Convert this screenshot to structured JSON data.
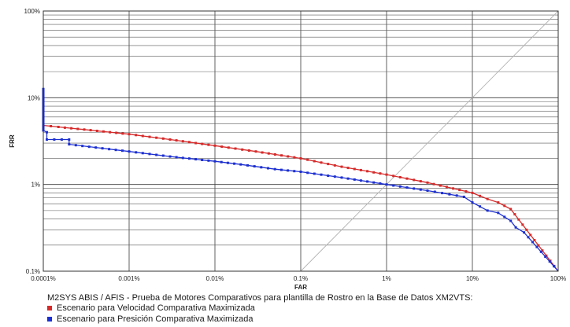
{
  "chart_data": {
    "type": "line",
    "title": "M2SYS ABIS / AFIS - Prueba de Motores Comparativos para plantilla de Rostro en la Base de Datos XM2VTS:",
    "xlabel": "FAR",
    "ylabel": "FRR",
    "x_scale": "log",
    "y_scale": "log",
    "xlim": [
      0.0001,
      100
    ],
    "ylim": [
      0.1,
      100
    ],
    "x_ticks": [
      "0.0001%",
      "0.001%",
      "0.01%",
      "0.1%",
      "1%",
      "10%",
      "100%"
    ],
    "y_ticks": [
      "0.1%",
      "1%",
      "10%",
      "100%"
    ],
    "grid": true,
    "legend_placement": "bottom",
    "series": [
      {
        "name": "Escenario para Velocidad Comparativa Maximizada",
        "color": "#d62a2a",
        "x": [
          0.0001,
          0.0001,
          0.00015,
          0.0003,
          0.001,
          0.003,
          0.01,
          0.03,
          0.1,
          0.3,
          1,
          3,
          10,
          15,
          20,
          28,
          100
        ],
        "y": [
          12,
          4.8,
          4.6,
          4.3,
          3.8,
          3.3,
          2.8,
          2.4,
          2.0,
          1.6,
          1.3,
          1.05,
          0.8,
          0.68,
          0.62,
          0.52,
          0.1
        ]
      },
      {
        "name": "Escenario para Presición Comparativa Maximizada",
        "color": "#1c2fd0",
        "x": [
          0.0001,
          0.0001,
          0.00011,
          0.00011,
          0.0002,
          0.0002,
          0.001,
          0.003,
          0.01,
          0.02,
          0.05,
          0.1,
          0.3,
          1,
          3,
          8,
          10,
          15,
          20,
          28,
          32,
          40,
          100
        ],
        "y": [
          13,
          4.2,
          4.0,
          3.3,
          3.3,
          2.9,
          2.4,
          2.1,
          1.85,
          1.7,
          1.5,
          1.4,
          1.2,
          1.0,
          0.85,
          0.72,
          0.62,
          0.5,
          0.47,
          0.38,
          0.32,
          0.28,
          0.1
        ]
      },
      {
        "name": "",
        "color": "#b4b4b4",
        "x": [
          0.1,
          100
        ],
        "y": [
          0.1,
          100
        ]
      }
    ]
  }
}
